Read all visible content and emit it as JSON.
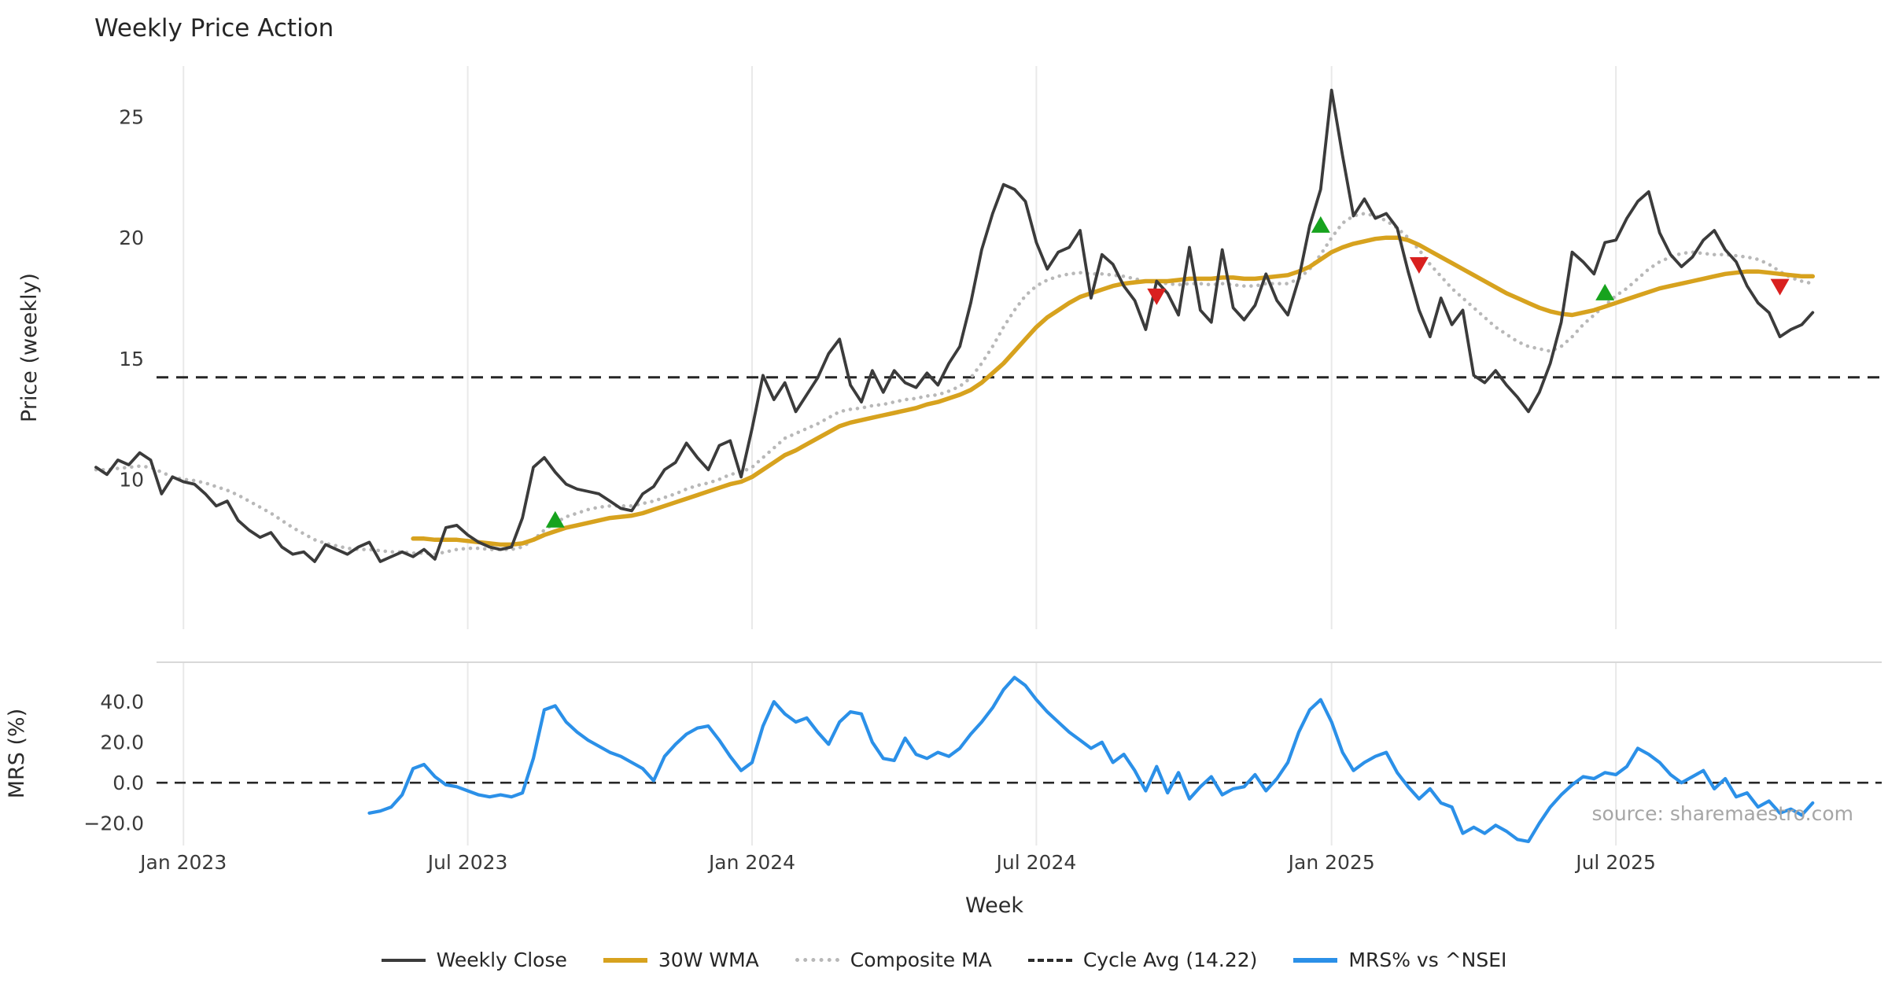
{
  "source_note": "source: sharemaestro.com",
  "chart_data": {
    "type": "line",
    "title": "Weekly Price Action",
    "xlabel": "Week",
    "x_tick_labels": [
      "Jan 2023",
      "Jul 2023",
      "Jan 2024",
      "Jul 2024",
      "Jan 2025",
      "Jul 2025"
    ],
    "x_tick_weeks": [
      8,
      34,
      60,
      86,
      113,
      139
    ],
    "n_weeks": 158,
    "grid": true,
    "price_panel": {
      "ylabel": "Price (weekly)",
      "ylim": [
        3.8,
        27.1
      ],
      "yticks": [
        10,
        15,
        20,
        25
      ]
    },
    "mrs_panel": {
      "ylabel": "MRS (%)",
      "ylim": [
        -31,
        59.5
      ],
      "yticks": [
        -20,
        0,
        20,
        40
      ],
      "ytick_labels": [
        "−20.0",
        "0.0",
        "20.0",
        "40.0"
      ]
    },
    "cycle_avg": 14.22,
    "series": [
      {
        "name": "Weekly Close",
        "panel": "price",
        "color": "#3b3b3b",
        "style": "solid",
        "lw": 3.8,
        "values": [
          10.5,
          10.2,
          10.8,
          10.6,
          11.1,
          10.8,
          9.4,
          10.1,
          9.9,
          9.8,
          9.4,
          8.9,
          9.1,
          8.3,
          7.9,
          7.6,
          7.8,
          7.2,
          6.9,
          7.0,
          6.6,
          7.3,
          7.1,
          6.9,
          7.2,
          7.4,
          6.6,
          6.8,
          7.0,
          6.8,
          7.1,
          6.7,
          8.0,
          8.1,
          7.7,
          7.4,
          7.2,
          7.1,
          7.2,
          8.4,
          10.5,
          10.9,
          10.3,
          9.8,
          9.6,
          9.5,
          9.4,
          9.1,
          8.8,
          8.7,
          9.4,
          9.7,
          10.4,
          10.7,
          11.5,
          10.9,
          10.4,
          11.4,
          11.6,
          10.1,
          12.1,
          14.3,
          13.3,
          14.0,
          12.8,
          13.5,
          14.2,
          15.2,
          15.8,
          13.9,
          13.2,
          14.5,
          13.6,
          14.5,
          14.0,
          13.8,
          14.4,
          13.9,
          14.8,
          15.5,
          17.3,
          19.5,
          21.0,
          22.2,
          22.0,
          21.5,
          19.8,
          18.7,
          19.4,
          19.6,
          20.3,
          17.5,
          19.3,
          18.9,
          18.0,
          17.4,
          16.2,
          18.2,
          17.7,
          16.8,
          19.6,
          17.0,
          16.5,
          19.5,
          17.1,
          16.6,
          17.2,
          18.5,
          17.4,
          16.8,
          18.3,
          20.5,
          22.0,
          26.1,
          23.4,
          20.9,
          21.6,
          20.8,
          21.0,
          20.4,
          18.6,
          17.0,
          15.9,
          17.5,
          16.4,
          17.0,
          14.3,
          14.0,
          14.5,
          13.9,
          13.4,
          12.8,
          13.6,
          14.8,
          16.5,
          19.4,
          19.0,
          18.5,
          19.8,
          19.9,
          20.8,
          21.5,
          21.9,
          20.2,
          19.3,
          18.8,
          19.2,
          19.9,
          20.3,
          19.5,
          19.0,
          18.0,
          17.3,
          16.9,
          15.9,
          16.2,
          16.4,
          16.9
        ]
      },
      {
        "name": "30W WMA",
        "panel": "price",
        "color": "#d7a21e",
        "style": "solid",
        "lw": 5.5,
        "values": [
          null,
          null,
          null,
          null,
          null,
          null,
          null,
          null,
          null,
          null,
          null,
          null,
          null,
          null,
          null,
          null,
          null,
          null,
          null,
          null,
          null,
          null,
          null,
          null,
          null,
          null,
          null,
          null,
          null,
          7.55,
          7.55,
          7.5,
          7.5,
          7.5,
          7.45,
          7.4,
          7.35,
          7.3,
          7.3,
          7.35,
          7.5,
          7.7,
          7.85,
          8.0,
          8.1,
          8.2,
          8.3,
          8.4,
          8.45,
          8.5,
          8.6,
          8.75,
          8.9,
          9.05,
          9.2,
          9.35,
          9.5,
          9.65,
          9.8,
          9.9,
          10.1,
          10.4,
          10.7,
          11.0,
          11.2,
          11.45,
          11.7,
          11.95,
          12.2,
          12.35,
          12.45,
          12.55,
          12.65,
          12.75,
          12.85,
          12.95,
          13.1,
          13.2,
          13.35,
          13.5,
          13.7,
          14.0,
          14.4,
          14.8,
          15.3,
          15.8,
          16.3,
          16.7,
          17.0,
          17.3,
          17.55,
          17.7,
          17.85,
          18.0,
          18.1,
          18.15,
          18.2,
          18.2,
          18.2,
          18.25,
          18.3,
          18.3,
          18.3,
          18.35,
          18.35,
          18.3,
          18.3,
          18.35,
          18.4,
          18.45,
          18.6,
          18.8,
          19.1,
          19.4,
          19.6,
          19.75,
          19.85,
          19.95,
          20.0,
          20.0,
          19.9,
          19.7,
          19.45,
          19.2,
          18.95,
          18.7,
          18.45,
          18.2,
          17.95,
          17.7,
          17.5,
          17.3,
          17.1,
          16.95,
          16.85,
          16.8,
          16.9,
          17.0,
          17.15,
          17.3,
          17.45,
          17.6,
          17.75,
          17.9,
          18.0,
          18.1,
          18.2,
          18.3,
          18.4,
          18.5,
          18.55,
          18.6,
          18.6,
          18.55,
          18.5,
          18.45,
          18.4,
          18.4
        ]
      },
      {
        "name": "Composite MA",
        "panel": "price",
        "color": "#b8b8b8",
        "style": "dotted",
        "lw": 4.5,
        "values": [
          10.4,
          10.4,
          10.45,
          10.5,
          10.55,
          10.5,
          10.3,
          10.1,
          10.0,
          9.95,
          9.85,
          9.7,
          9.55,
          9.35,
          9.1,
          8.85,
          8.6,
          8.3,
          8.0,
          7.75,
          7.5,
          7.35,
          7.25,
          7.15,
          7.1,
          7.1,
          7.05,
          7.0,
          7.0,
          6.95,
          6.95,
          6.9,
          7.0,
          7.1,
          7.15,
          7.15,
          7.1,
          7.1,
          7.1,
          7.2,
          7.5,
          7.9,
          8.2,
          8.45,
          8.6,
          8.75,
          8.85,
          8.9,
          8.9,
          8.9,
          9.0,
          9.1,
          9.25,
          9.4,
          9.6,
          9.75,
          9.85,
          10.0,
          10.2,
          10.3,
          10.5,
          10.9,
          11.3,
          11.7,
          11.9,
          12.1,
          12.3,
          12.55,
          12.8,
          12.9,
          12.95,
          13.05,
          13.1,
          13.2,
          13.3,
          13.35,
          13.45,
          13.5,
          13.65,
          13.85,
          14.2,
          14.8,
          15.5,
          16.3,
          17.0,
          17.6,
          18.0,
          18.25,
          18.4,
          18.5,
          18.55,
          18.5,
          18.5,
          18.45,
          18.4,
          18.3,
          18.2,
          18.15,
          18.1,
          18.05,
          18.1,
          18.1,
          18.05,
          18.1,
          18.05,
          18.0,
          18.0,
          18.1,
          18.1,
          18.1,
          18.3,
          18.7,
          19.3,
          20.0,
          20.6,
          20.9,
          21.0,
          20.9,
          20.7,
          20.4,
          20.0,
          19.5,
          18.9,
          18.4,
          17.9,
          17.5,
          17.1,
          16.7,
          16.3,
          16.0,
          15.7,
          15.5,
          15.4,
          15.3,
          15.5,
          15.9,
          16.4,
          16.8,
          17.2,
          17.6,
          17.9,
          18.3,
          18.7,
          19.0,
          19.2,
          19.35,
          19.4,
          19.35,
          19.3,
          19.3,
          19.25,
          19.2,
          19.1,
          18.9,
          18.6,
          18.35,
          18.2,
          18.1
        ]
      },
      {
        "name": "MRS% vs ^NSEI",
        "panel": "mrs",
        "color": "#2b90e8",
        "style": "solid",
        "lw": 4.2,
        "values": [
          null,
          null,
          null,
          null,
          null,
          null,
          null,
          null,
          null,
          null,
          null,
          null,
          null,
          null,
          null,
          null,
          null,
          null,
          null,
          null,
          null,
          null,
          null,
          null,
          null,
          -15,
          -14,
          -12,
          -6,
          7,
          9,
          3,
          -1,
          -2,
          -4,
          -6,
          -7,
          -6,
          -7,
          -5,
          12,
          36,
          38,
          30,
          25,
          21,
          18,
          15,
          13,
          10,
          7,
          1,
          13,
          19,
          24,
          27,
          28,
          21,
          13,
          6,
          10,
          28,
          40,
          34,
          30,
          32,
          25,
          19,
          30,
          35,
          34,
          20,
          12,
          11,
          22,
          14,
          12,
          15,
          13,
          17,
          24,
          30,
          37,
          46,
          52,
          48,
          41,
          35,
          30,
          25,
          21,
          17,
          20,
          10,
          14,
          6,
          -4,
          8,
          -5,
          5,
          -8,
          -2,
          3,
          -6,
          -3,
          -2,
          4,
          -4,
          2,
          10,
          25,
          36,
          41,
          30,
          15,
          6,
          10,
          13,
          15,
          5,
          -2,
          -8,
          -3,
          -10,
          -12,
          -25,
          -22,
          -25,
          -21,
          -24,
          -28,
          -29,
          -20,
          -12,
          -6,
          -1,
          3,
          2,
          5,
          4,
          8,
          17,
          14,
          10,
          4,
          0,
          3,
          6,
          -3,
          2,
          -7,
          -5,
          -12,
          -9,
          -15,
          -13,
          -16,
          -10
        ]
      }
    ],
    "signals": [
      {
        "week": 42,
        "price": 8.3,
        "type": "buy"
      },
      {
        "week": 97,
        "price": 17.6,
        "type": "sell"
      },
      {
        "week": 112,
        "price": 20.5,
        "type": "buy"
      },
      {
        "week": 121,
        "price": 18.9,
        "type": "sell"
      },
      {
        "week": 138,
        "price": 17.7,
        "type": "buy"
      },
      {
        "week": 154,
        "price": 18.0,
        "type": "sell"
      }
    ],
    "signal_colors": {
      "buy": "#17a31e",
      "sell": "#d9201f"
    },
    "legend": [
      {
        "label": "Weekly Close",
        "color": "#3b3b3b",
        "sample": "solid"
      },
      {
        "label": "30W WMA",
        "color": "#d7a21e",
        "sample": "solid-thick"
      },
      {
        "label": "Composite MA",
        "color": "#b8b8b8",
        "sample": "dotted"
      },
      {
        "label": "Cycle Avg (14.22)",
        "color": "#2b2b2b",
        "sample": "dashed"
      },
      {
        "label": "MRS% vs ^NSEI",
        "color": "#2b90e8",
        "sample": "solid-thick"
      }
    ]
  }
}
